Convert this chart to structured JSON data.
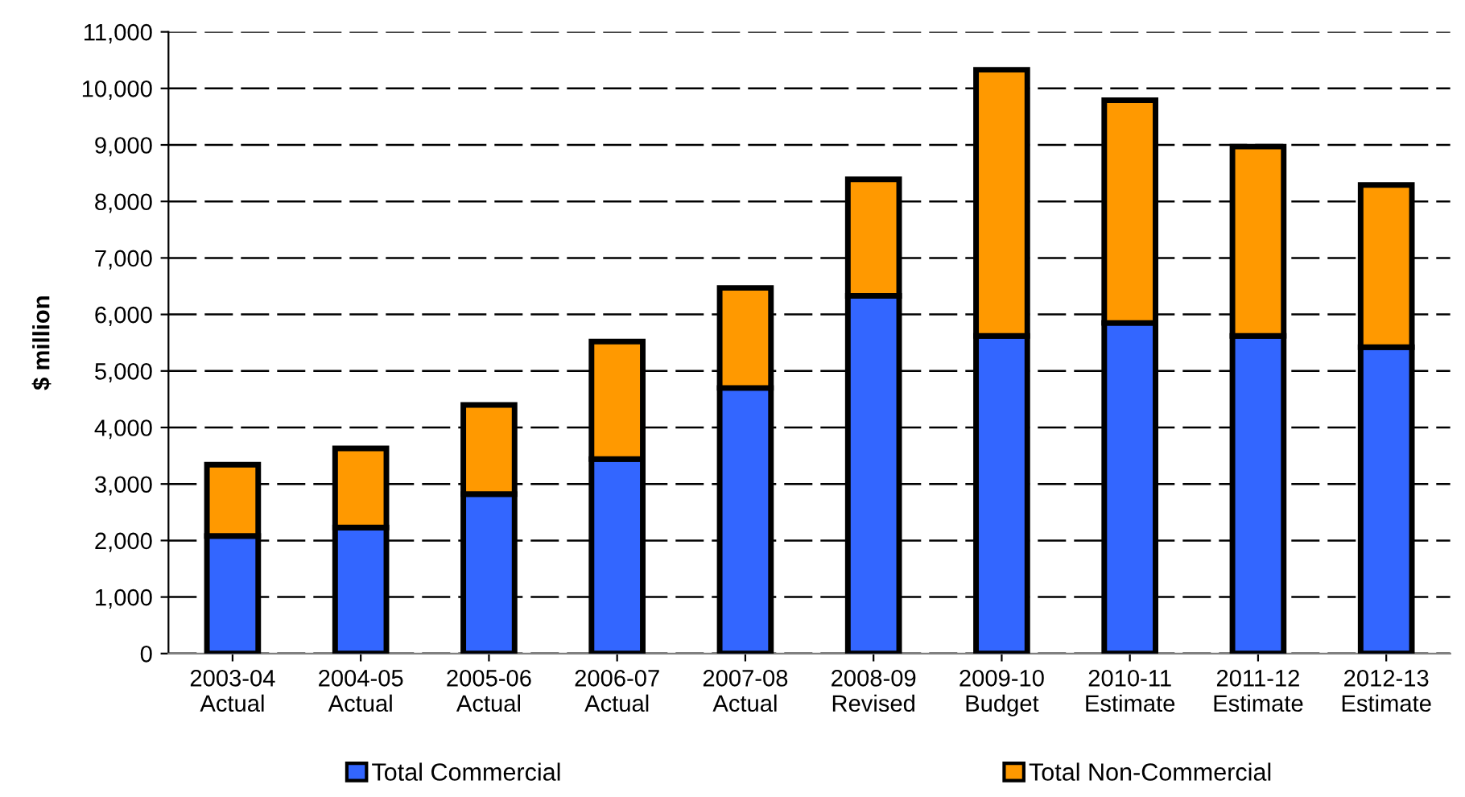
{
  "chart_data": {
    "type": "bar",
    "stacked": true,
    "ylabel": "$ million",
    "categories": [
      "2003-04\nActual",
      "2004-05\nActual",
      "2005-06\nActual",
      "2006-07\nActual",
      "2007-08\nActual",
      "2008-09\nRevised",
      "2009-10\nBudget",
      "2010-11\nEstimate",
      "2011-12\nEstimate",
      "2012-13\nEstimate"
    ],
    "series": [
      {
        "name": "Total Commercial",
        "color": "#3366ff",
        "values": [
          2080,
          2230,
          2820,
          3440,
          4700,
          6330,
          5620,
          5850,
          5620,
          5420
        ]
      },
      {
        "name": "Total Non-Commercial",
        "color": "#ff9900",
        "values": [
          1260,
          1400,
          1580,
          2080,
          1770,
          2060,
          4710,
          3940,
          3350,
          2870
        ]
      }
    ],
    "ylim": [
      0,
      11000
    ],
    "yticks": [
      {
        "value": 0,
        "label": "0"
      },
      {
        "value": 1000,
        "label": "1,000"
      },
      {
        "value": 2000,
        "label": "2,000"
      },
      {
        "value": 3000,
        "label": "3,000"
      },
      {
        "value": 4000,
        "label": "4,000"
      },
      {
        "value": 5000,
        "label": "5,000"
      },
      {
        "value": 6000,
        "label": "6,000"
      },
      {
        "value": 7000,
        "label": "7,000"
      },
      {
        "value": 8000,
        "label": "8,000"
      },
      {
        "value": 9000,
        "label": "9,000"
      },
      {
        "value": 10000,
        "label": "10,000"
      },
      {
        "value": 11000,
        "label": "11,000"
      }
    ],
    "grid": "y",
    "legend": "bottom"
  }
}
